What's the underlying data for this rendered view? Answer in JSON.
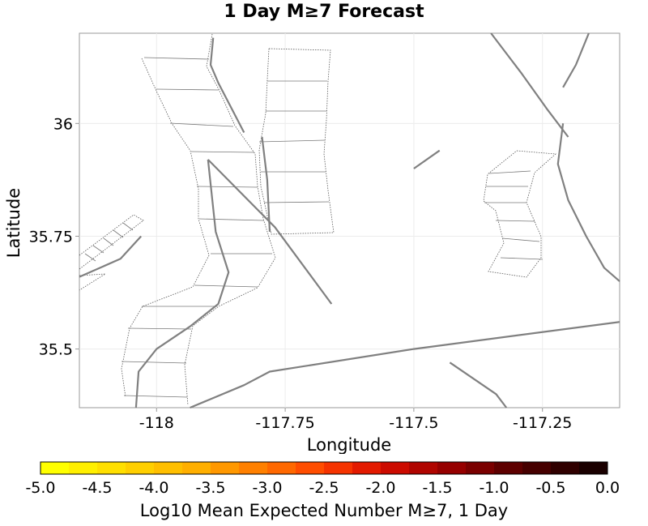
{
  "chart_data": {
    "type": "map",
    "title": "1 Day M≥7 Forecast",
    "xlabel": "Longitude",
    "ylabel": "Latitude",
    "xlim": [
      -118.15,
      -117.1
    ],
    "ylim": [
      35.37,
      36.2
    ],
    "x_ticks": [
      {
        "value": -118.0,
        "label": "-118"
      },
      {
        "value": -117.75,
        "label": "-117.75"
      },
      {
        "value": -117.5,
        "label": "-117.5"
      },
      {
        "value": -117.25,
        "label": "-117.25"
      }
    ],
    "y_ticks": [
      {
        "value": 36.0,
        "label": "36"
      },
      {
        "value": 35.75,
        "label": "35.75"
      },
      {
        "value": 35.5,
        "label": "35.5"
      }
    ],
    "grid": true,
    "faults": [
      [
        [
          -117.89,
          36.19
        ],
        [
          -117.895,
          36.13
        ],
        [
          -117.88,
          36.09
        ],
        [
          -117.83,
          35.98
        ]
      ],
      [
        [
          -117.9,
          35.92
        ],
        [
          -117.885,
          35.76
        ],
        [
          -117.86,
          35.67
        ],
        [
          -117.88,
          35.6
        ],
        [
          -117.935,
          35.55
        ],
        [
          -118.0,
          35.5
        ],
        [
          -118.035,
          35.45
        ],
        [
          -118.04,
          35.37
        ]
      ],
      [
        [
          -117.9,
          35.92
        ],
        [
          -117.77,
          35.77
        ],
        [
          -117.66,
          35.6
        ]
      ],
      [
        [
          -117.795,
          35.97
        ],
        [
          -117.785,
          35.875
        ],
        [
          -117.78,
          35.76
        ]
      ],
      [
        [
          -117.35,
          36.2
        ],
        [
          -117.29,
          36.11
        ],
        [
          -117.24,
          36.03
        ],
        [
          -117.2,
          35.97
        ]
      ],
      [
        [
          -117.1,
          35.65
        ],
        [
          -117.13,
          35.68
        ],
        [
          -117.165,
          35.75
        ],
        [
          -117.2,
          35.83
        ],
        [
          -117.22,
          35.91
        ],
        [
          -117.21,
          36.0
        ]
      ],
      [
        [
          -117.21,
          36.08
        ],
        [
          -117.185,
          36.13
        ],
        [
          -117.16,
          36.2
        ]
      ],
      [
        [
          -117.935,
          35.37
        ],
        [
          -117.83,
          35.42
        ],
        [
          -117.78,
          35.45
        ],
        [
          -117.5,
          35.5
        ],
        [
          -117.1,
          35.56
        ]
      ],
      [
        [
          -117.43,
          35.47
        ],
        [
          -117.34,
          35.4
        ],
        [
          -117.32,
          35.37
        ]
      ],
      [
        [
          -118.15,
          35.66
        ],
        [
          -118.07,
          35.7
        ],
        [
          -118.03,
          35.75
        ]
      ],
      [
        [
          -117.5,
          35.9
        ],
        [
          -117.45,
          35.94
        ]
      ]
    ],
    "color_scale": {
      "label": "Log10 Mean Expected Number M≥7, 1 Day",
      "min": -5.0,
      "max": 0.0,
      "tick_labels": [
        "-5.0",
        "-4.5",
        "-4.0",
        "-3.5",
        "-3.0",
        "-2.5",
        "-2.0",
        "-1.5",
        "-1.0",
        "-0.5",
        "0.0"
      ],
      "colors": [
        "#ffff00",
        "#ffef00",
        "#ffdf00",
        "#ffcf00",
        "#ffbf00",
        "#ffaf00",
        "#ff9800",
        "#ff8000",
        "#ff6800",
        "#ff4d00",
        "#f53300",
        "#e31a00",
        "#cc0b00",
        "#b00500",
        "#960000",
        "#7a0000",
        "#5e0000",
        "#460000",
        "#300000",
        "#1a0000"
      ]
    }
  }
}
